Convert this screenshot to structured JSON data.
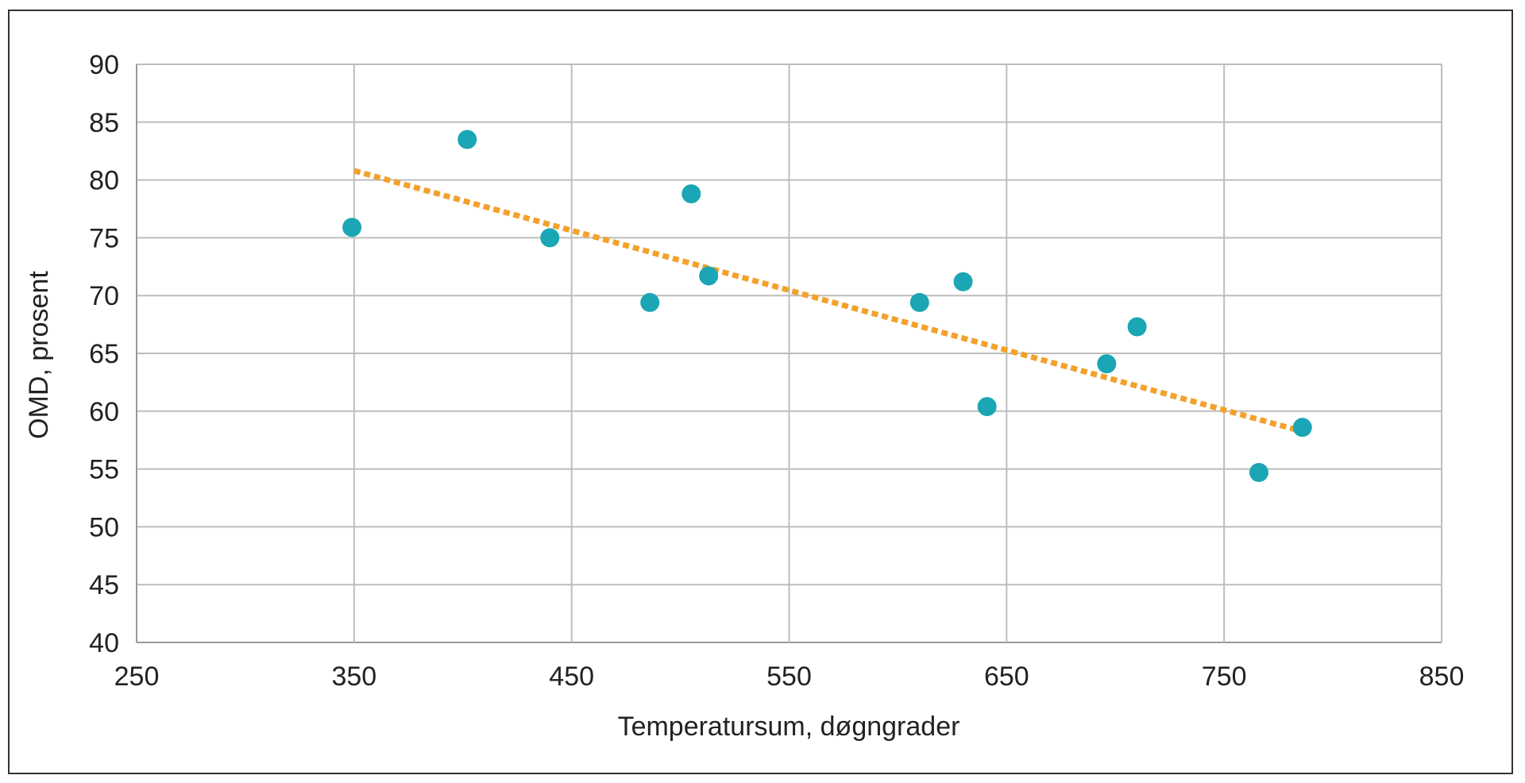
{
  "chart_data": {
    "type": "scatter",
    "title": "",
    "xlabel": "Temperatursum, døgngrader",
    "ylabel": "OMD, prosent",
    "xlim": [
      250,
      850
    ],
    "ylim": [
      40,
      90
    ],
    "xticks": [
      250,
      350,
      450,
      550,
      650,
      750,
      850
    ],
    "yticks": [
      40,
      45,
      50,
      55,
      60,
      65,
      70,
      75,
      80,
      85,
      90
    ],
    "grid": true,
    "legend": "none",
    "series": [
      {
        "points": [
          {
            "x": 349,
            "y": 75.9
          },
          {
            "x": 402,
            "y": 83.5
          },
          {
            "x": 440,
            "y": 75.0
          },
          {
            "x": 486,
            "y": 69.4
          },
          {
            "x": 505,
            "y": 78.8
          },
          {
            "x": 513,
            "y": 71.7
          },
          {
            "x": 610,
            "y": 69.4
          },
          {
            "x": 630,
            "y": 71.2
          },
          {
            "x": 641,
            "y": 60.4
          },
          {
            "x": 696,
            "y": 64.1
          },
          {
            "x": 710,
            "y": 67.3
          },
          {
            "x": 766,
            "y": 54.7
          },
          {
            "x": 786,
            "y": 58.6
          }
        ],
        "color": "#1aa6b4"
      }
    ],
    "trendline": {
      "style": "dotted",
      "color": "#f3a12b",
      "points": [
        {
          "x": 350,
          "y": 80.8
        },
        {
          "x": 785,
          "y": 58.3
        }
      ]
    },
    "colors": {
      "grid": "#bdbdbd",
      "axis": "#999999"
    }
  }
}
